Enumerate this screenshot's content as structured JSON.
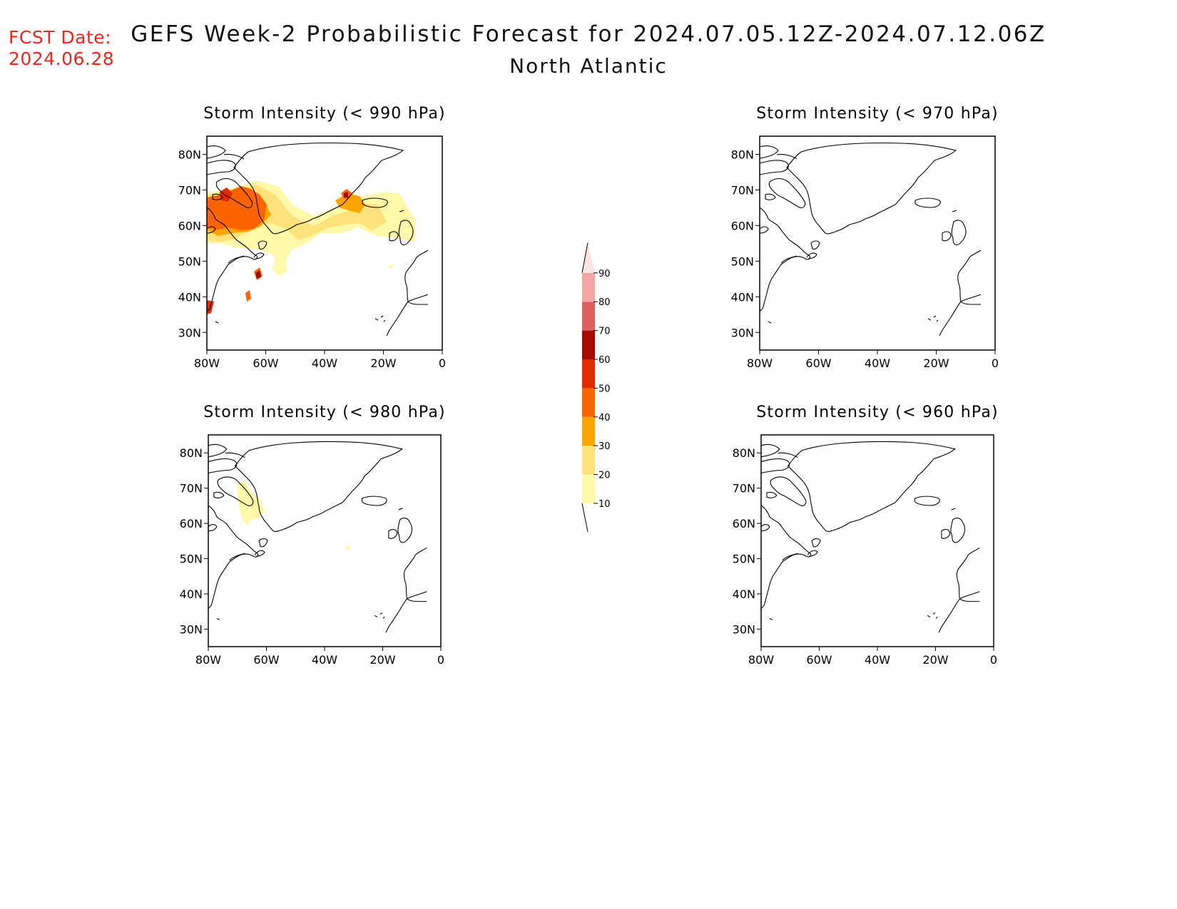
{
  "header": {
    "fcst_label": "FCST Date:",
    "fcst_date": "2024.06.28",
    "title": "GEFS Week-2 Probabilistic Forecast for 2024.07.05.12Z-2024.07.12.06Z",
    "subtitle": "North Atlantic"
  },
  "axes": {
    "lon_ticks": [
      "80W",
      "60W",
      "40W",
      "20W",
      "0"
    ],
    "lat_ticks": [
      "80N",
      "70N",
      "60N",
      "50N",
      "40N",
      "30N"
    ]
  },
  "panels": [
    {
      "id": "p990",
      "title": "Storm Intensity (< 990 hPa)"
    },
    {
      "id": "p970",
      "title": "Storm Intensity (< 970 hPa)"
    },
    {
      "id": "p980",
      "title": "Storm Intensity (< 980 hPa)"
    },
    {
      "id": "p960",
      "title": "Storm Intensity (< 960 hPa)"
    }
  ],
  "colorbar": {
    "labels": [
      "10",
      "20",
      "30",
      "40",
      "50",
      "60",
      "70",
      "80",
      "90"
    ],
    "colors": [
      "#fff8a8",
      "#fde27a",
      "#fca400",
      "#fd6300",
      "#e42a00",
      "#a50a00",
      "#dc6060",
      "#f3a6a6",
      "#fde4e4"
    ]
  }
}
